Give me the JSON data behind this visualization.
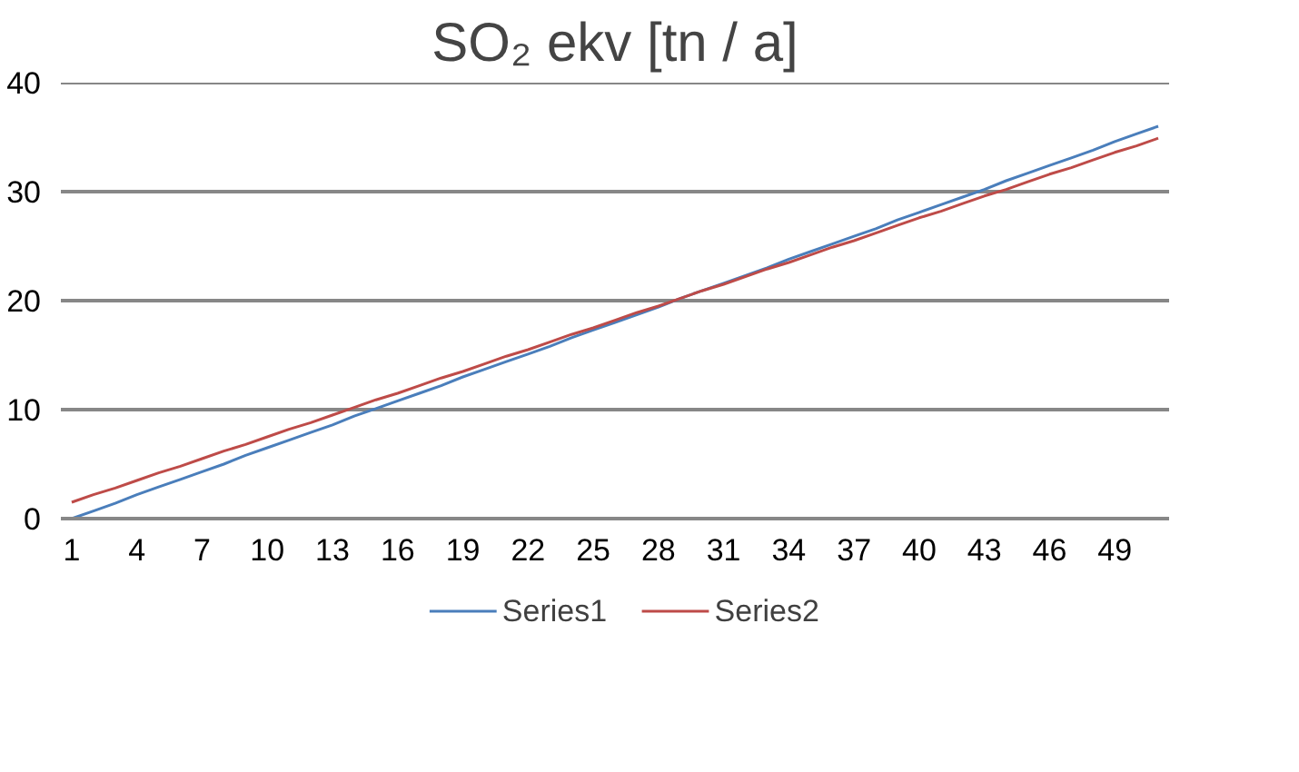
{
  "chart_data": {
    "type": "line",
    "title": "SO₂ ekv [tn / a]",
    "x": [
      1,
      2,
      3,
      4,
      5,
      6,
      7,
      8,
      9,
      10,
      11,
      12,
      13,
      14,
      15,
      16,
      17,
      18,
      19,
      20,
      21,
      22,
      23,
      24,
      25,
      26,
      27,
      28,
      29,
      30,
      31,
      32,
      33,
      34,
      35,
      36,
      37,
      38,
      39,
      40,
      41,
      42,
      43,
      44,
      45,
      46,
      47,
      48,
      49,
      50,
      51
    ],
    "series": [
      {
        "name": "Series1",
        "color": "#4a7ebb",
        "values": [
          0,
          0.7,
          1.4,
          2.2,
          2.9,
          3.6,
          4.3,
          5.0,
          5.8,
          6.5,
          7.2,
          7.9,
          8.6,
          9.4,
          10.1,
          10.8,
          11.5,
          12.2,
          13.0,
          13.7,
          14.4,
          15.1,
          15.8,
          16.6,
          17.3,
          18.0,
          18.7,
          19.4,
          20.2,
          20.9,
          21.6,
          22.3,
          23.0,
          23.8,
          24.5,
          25.2,
          25.9,
          26.6,
          27.4,
          28.1,
          28.8,
          29.5,
          30.2,
          31.0,
          31.7,
          32.4,
          33.1,
          33.8,
          34.6,
          35.3,
          36.0
        ]
      },
      {
        "name": "Series2",
        "color": "#be4b48",
        "values": [
          1.5,
          2.2,
          2.8,
          3.5,
          4.2,
          4.8,
          5.5,
          6.2,
          6.8,
          7.5,
          8.2,
          8.8,
          9.5,
          10.2,
          10.9,
          11.5,
          12.2,
          12.9,
          13.5,
          14.2,
          14.9,
          15.5,
          16.2,
          16.9,
          17.5,
          18.2,
          18.9,
          19.5,
          20.2,
          20.9,
          21.5,
          22.2,
          22.9,
          23.5,
          24.2,
          24.9,
          25.5,
          26.2,
          26.9,
          27.6,
          28.2,
          28.9,
          29.6,
          30.2,
          30.9,
          31.6,
          32.2,
          32.9,
          33.6,
          34.2,
          34.9
        ]
      }
    ],
    "xlim": [
      0.5,
      51.5
    ],
    "xticks": [
      1,
      4,
      7,
      10,
      13,
      16,
      19,
      22,
      25,
      28,
      31,
      34,
      37,
      40,
      43,
      46,
      49
    ],
    "ylim": [
      0,
      40
    ],
    "yticks": [
      0,
      10,
      20,
      30,
      40
    ],
    "grid": "y",
    "legend": "bottom",
    "marker": "none",
    "line_style": "solid"
  }
}
